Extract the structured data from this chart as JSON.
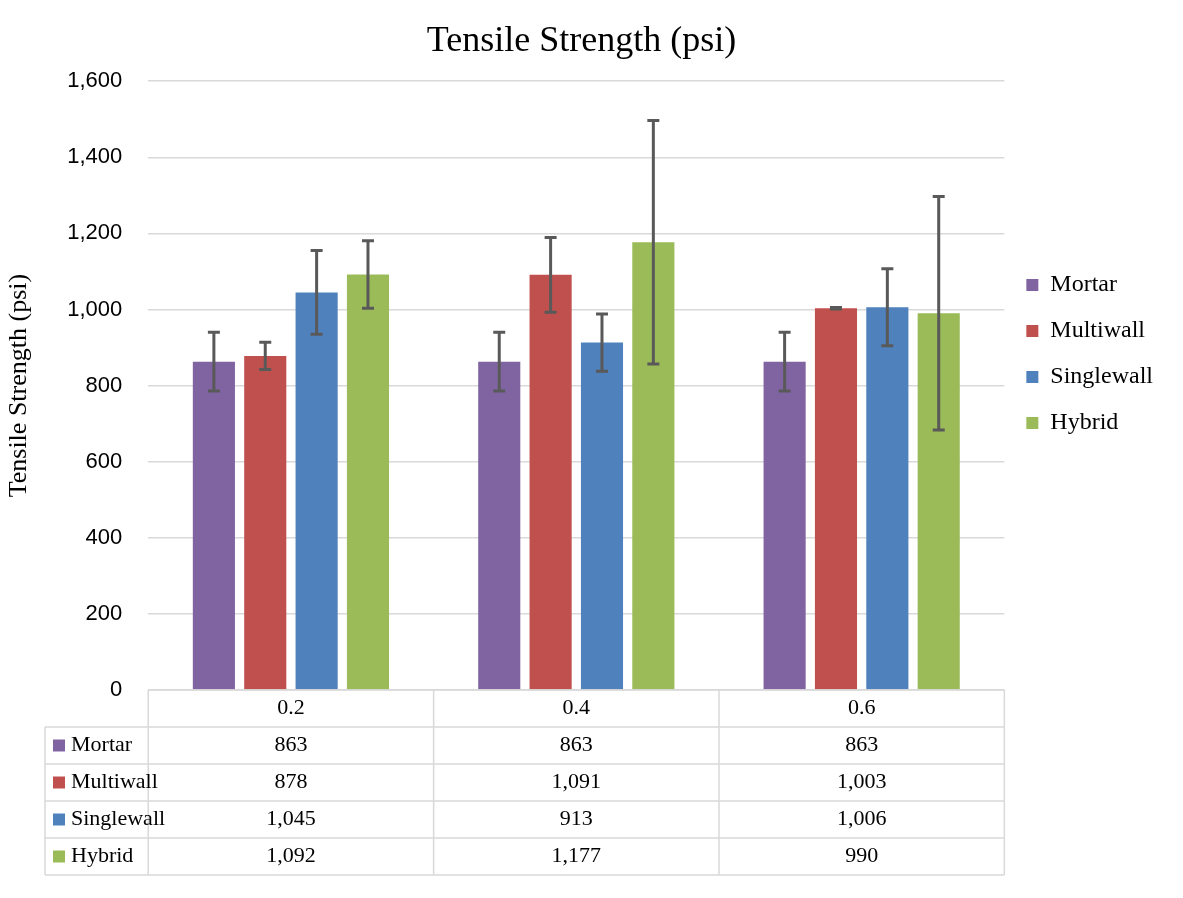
{
  "chart_data": {
    "type": "bar",
    "title": "Tensile Strength (psi)",
    "ylabel": "Tensile Strength (psi)",
    "categories": [
      "0.2",
      "0.4",
      "0.6"
    ],
    "series": [
      {
        "name": "Mortar",
        "color": "#8064a2",
        "values": [
          863,
          863,
          863
        ],
        "errors": [
          77,
          77,
          77
        ],
        "value_labels": [
          "863",
          "863",
          "863"
        ]
      },
      {
        "name": "Multiwall",
        "color": "#c0504d",
        "values": [
          878,
          1091,
          1003
        ],
        "errors": [
          36,
          98,
          2
        ],
        "value_labels": [
          "878",
          "1,091",
          "1,003"
        ]
      },
      {
        "name": "Singlewall",
        "color": "#4f81bd",
        "values": [
          1045,
          913,
          1006
        ],
        "errors": [
          110,
          75,
          101
        ],
        "value_labels": [
          "1,045",
          "913",
          "1,006"
        ]
      },
      {
        "name": "Hybrid",
        "color": "#9bbb59",
        "values": [
          1092,
          1177,
          990
        ],
        "errors": [
          89,
          320,
          307
        ],
        "value_labels": [
          "1,092",
          "1,177",
          "990"
        ]
      }
    ],
    "ylim": [
      0,
      1600
    ],
    "yticks": [
      {
        "value": 0,
        "label": "0"
      },
      {
        "value": 200,
        "label": "200"
      },
      {
        "value": 400,
        "label": "400"
      },
      {
        "value": 600,
        "label": "600"
      },
      {
        "value": 800,
        "label": "800"
      },
      {
        "value": 1000,
        "label": "1,000"
      },
      {
        "value": 1200,
        "label": "1,200"
      },
      {
        "value": 1400,
        "label": "1,400"
      },
      {
        "value": 1600,
        "label": "1,600"
      }
    ],
    "grid": "y",
    "legend": "right"
  }
}
